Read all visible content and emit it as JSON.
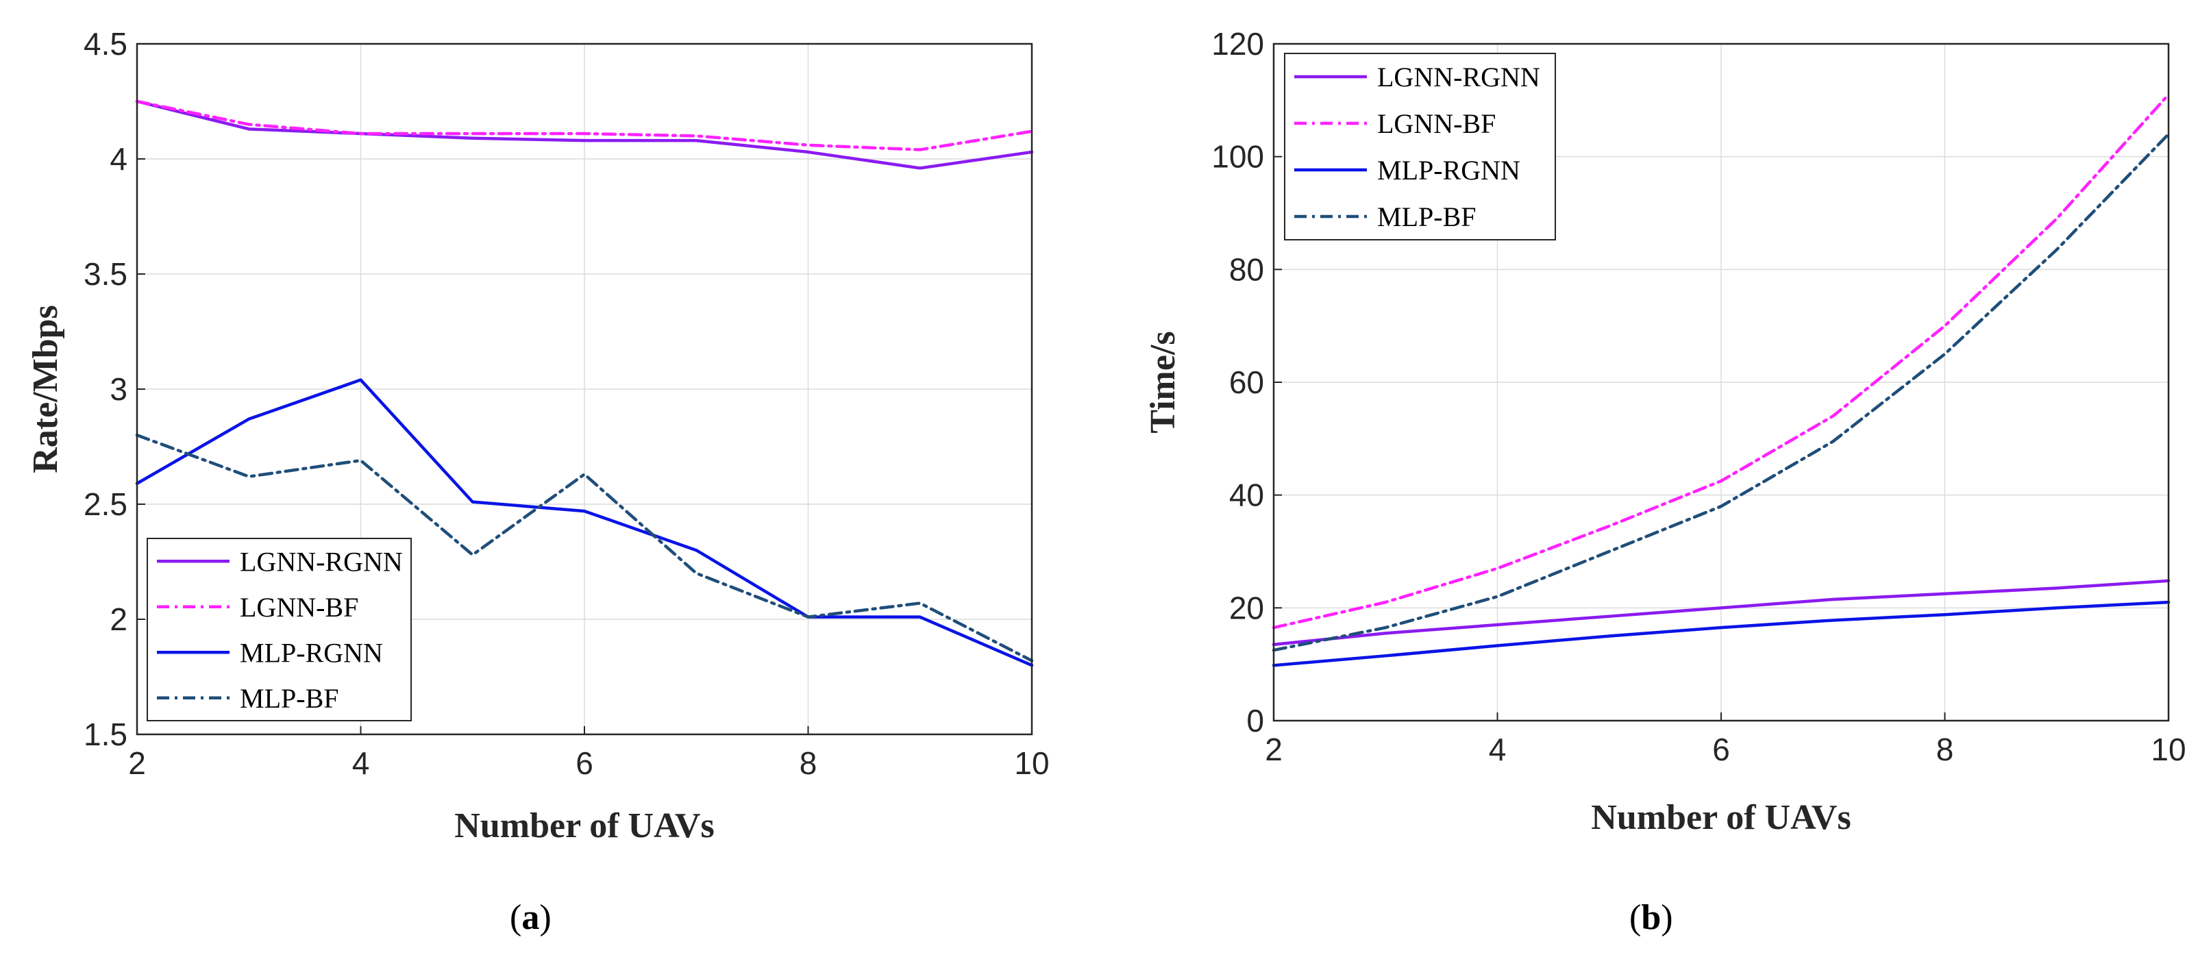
{
  "figure": {
    "caption_a": {
      "open": "(",
      "letter": "a",
      "close": ")"
    },
    "caption_b": {
      "open": "(",
      "letter": "b",
      "close": ")"
    }
  },
  "chart_data": [
    {
      "type": "line",
      "id": "a",
      "title": "",
      "xlabel": "Number of UAVs",
      "ylabel": "Rate/Mbps",
      "xlim": [
        2,
        10
      ],
      "ylim": [
        1.5,
        4.5
      ],
      "xticks": [
        2,
        4,
        6,
        8,
        10
      ],
      "yticks": [
        1.5,
        2,
        2.5,
        3,
        3.5,
        4,
        4.5
      ],
      "ytick_labels": [
        "1.5",
        "2",
        "2.5",
        "3",
        "3.5",
        "4",
        "4.5"
      ],
      "grid": true,
      "legend_position": "bottom-left",
      "x": [
        2,
        3,
        4,
        5,
        6,
        7,
        8,
        9,
        10
      ],
      "series": [
        {
          "name": "LGNN-RGNN",
          "color": "#8B1BF0",
          "dash": "solid",
          "values": [
            4.25,
            4.13,
            4.11,
            4.09,
            4.08,
            4.08,
            4.03,
            3.96,
            4.03
          ]
        },
        {
          "name": "LGNN-BF",
          "color": "#FF22FF",
          "dash": "dashdot",
          "values": [
            4.25,
            4.15,
            4.11,
            4.11,
            4.11,
            4.1,
            4.06,
            4.04,
            4.12
          ]
        },
        {
          "name": "MLP-RGNN",
          "color": "#0A14E6",
          "dash": "solid",
          "values": [
            2.59,
            2.87,
            3.04,
            2.51,
            2.47,
            2.3,
            2.01,
            2.01,
            1.8
          ]
        },
        {
          "name": "MLP-BF",
          "color": "#1F4E79",
          "dash": "dashdot",
          "values": [
            2.8,
            2.62,
            2.69,
            2.28,
            2.63,
            2.2,
            2.01,
            2.07,
            1.82
          ]
        }
      ]
    },
    {
      "type": "line",
      "id": "b",
      "title": "",
      "xlabel": "Number of UAVs",
      "ylabel": "Time/s",
      "xlim": [
        2,
        10
      ],
      "ylim": [
        0,
        120
      ],
      "xticks": [
        2,
        4,
        6,
        8,
        10
      ],
      "yticks": [
        0,
        20,
        40,
        60,
        80,
        100,
        120
      ],
      "ytick_labels": [
        "0",
        "20",
        "40",
        "60",
        "80",
        "100",
        "120"
      ],
      "grid": true,
      "legend_position": "top-left",
      "x": [
        2,
        3,
        4,
        5,
        6,
        7,
        8,
        9,
        10
      ],
      "series": [
        {
          "name": "LGNN-RGNN",
          "color": "#8B1BF0",
          "dash": "solid",
          "values": [
            13.5,
            15.5,
            17.0,
            18.5,
            20.0,
            21.5,
            22.5,
            23.5,
            24.8
          ]
        },
        {
          "name": "LGNN-BF",
          "color": "#FF22FF",
          "dash": "dashdot",
          "values": [
            16.5,
            21.0,
            27.0,
            34.5,
            42.5,
            54.0,
            70.0,
            89.0,
            111.0
          ]
        },
        {
          "name": "MLP-RGNN",
          "color": "#0A14E6",
          "dash": "solid",
          "values": [
            9.8,
            11.5,
            13.3,
            15.0,
            16.5,
            17.8,
            18.8,
            20.0,
            21.0
          ]
        },
        {
          "name": "MLP-BF",
          "color": "#1F4E79",
          "dash": "dashdot",
          "values": [
            12.5,
            16.5,
            22.0,
            30.0,
            38.0,
            49.5,
            65.0,
            83.5,
            104.0
          ]
        }
      ]
    }
  ]
}
